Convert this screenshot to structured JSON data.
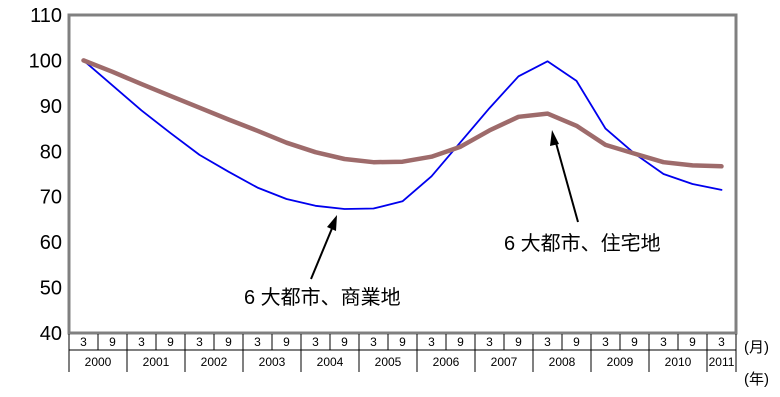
{
  "chart_data": {
    "type": "line",
    "ylim": [
      40,
      110
    ],
    "yticks": [
      40,
      50,
      60,
      70,
      80,
      90,
      100,
      110
    ],
    "x": [
      "2000-03",
      "2000-09",
      "2001-03",
      "2001-09",
      "2002-03",
      "2002-09",
      "2003-03",
      "2003-09",
      "2004-03",
      "2004-09",
      "2005-03",
      "2005-09",
      "2006-03",
      "2006-09",
      "2007-03",
      "2007-09",
      "2008-03",
      "2008-09",
      "2009-03",
      "2009-09",
      "2010-03",
      "2010-09",
      "2011-03"
    ],
    "month_labels": [
      "3",
      "9",
      "3",
      "9",
      "3",
      "9",
      "3",
      "9",
      "3",
      "9",
      "3",
      "9",
      "3",
      "9",
      "3",
      "9",
      "3",
      "9",
      "3",
      "9",
      "3",
      "9",
      "3"
    ],
    "year_labels": [
      "2000",
      "2001",
      "2002",
      "2003",
      "2004",
      "2005",
      "2006",
      "2007",
      "2008",
      "2009",
      "2010",
      "2011"
    ],
    "month_unit": "(月)",
    "year_unit": "(年)",
    "grid": false,
    "series": [
      {
        "name": "6 大都市、商業地",
        "color": "#0000ee",
        "values": [
          100,
          94.5,
          89,
          84,
          79.2,
          75.5,
          72,
          69.5,
          68,
          67.3,
          67.4,
          69,
          74.5,
          82,
          89.5,
          96.5,
          99.8,
          95.5,
          85,
          79.5,
          75,
          72.8,
          71.5
        ]
      },
      {
        "name": "6 大都市、住宅地",
        "color": "#9e6b6b",
        "values": [
          100,
          97.5,
          94.8,
          92.2,
          89.6,
          87,
          84.5,
          81.9,
          79.8,
          78.3,
          77.6,
          77.7,
          78.8,
          81,
          84.6,
          87.6,
          88.3,
          85.6,
          81.4,
          79.5,
          77.6,
          76.9,
          76.7
        ]
      }
    ]
  }
}
